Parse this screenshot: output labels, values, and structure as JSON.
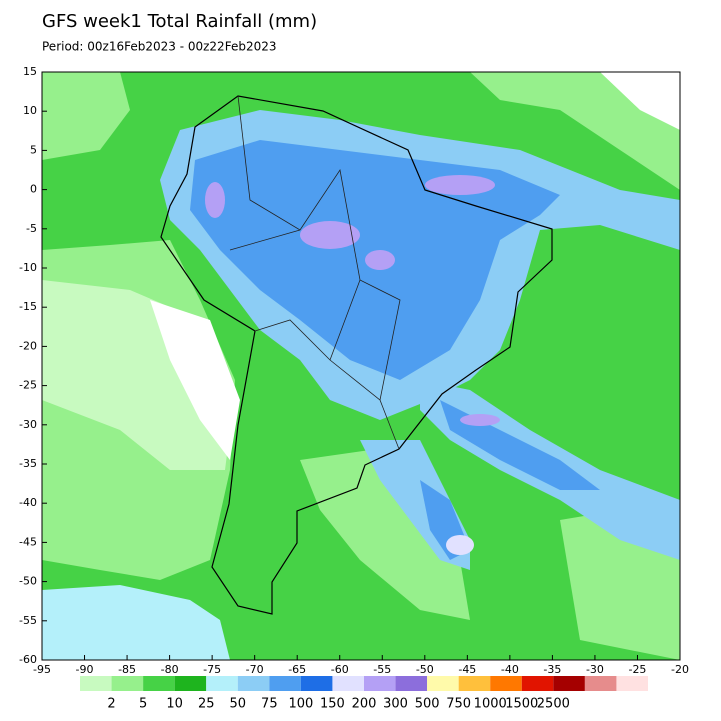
{
  "title": "GFS week1 Total Rainfall (mm)",
  "subtitle": "Period: 00z16Feb2023 - 00z22Feb2023",
  "map": {
    "xlim": [
      -95,
      -20
    ],
    "ylim": [
      -60,
      15
    ],
    "xticks": [
      -95,
      -90,
      -85,
      -80,
      -75,
      -70,
      -65,
      -60,
      -55,
      -50,
      -45,
      -40,
      -35,
      -30,
      -25,
      -20
    ],
    "yticks": [
      15,
      10,
      5,
      0,
      -5,
      -10,
      -15,
      -20,
      -25,
      -30,
      -35,
      -40,
      -45,
      -50,
      -55,
      -60
    ]
  },
  "colorbar": {
    "labels": [
      2,
      5,
      10,
      25,
      50,
      75,
      100,
      150,
      200,
      300,
      500,
      750,
      1000,
      1500,
      2500
    ],
    "colors": [
      "#c8fac0",
      "#96f08c",
      "#46d246",
      "#1eb41e",
      "#b4f0fa",
      "#8ccdf5",
      "#4f9ef0",
      "#1e6ee6",
      "#e1e1ff",
      "#b4a0f5",
      "#8c6edc",
      "#fffaaa",
      "#ffc03c",
      "#ff7800",
      "#e11400",
      "#a50000",
      "#e68c8c",
      "#ffe1e1"
    ]
  }
}
